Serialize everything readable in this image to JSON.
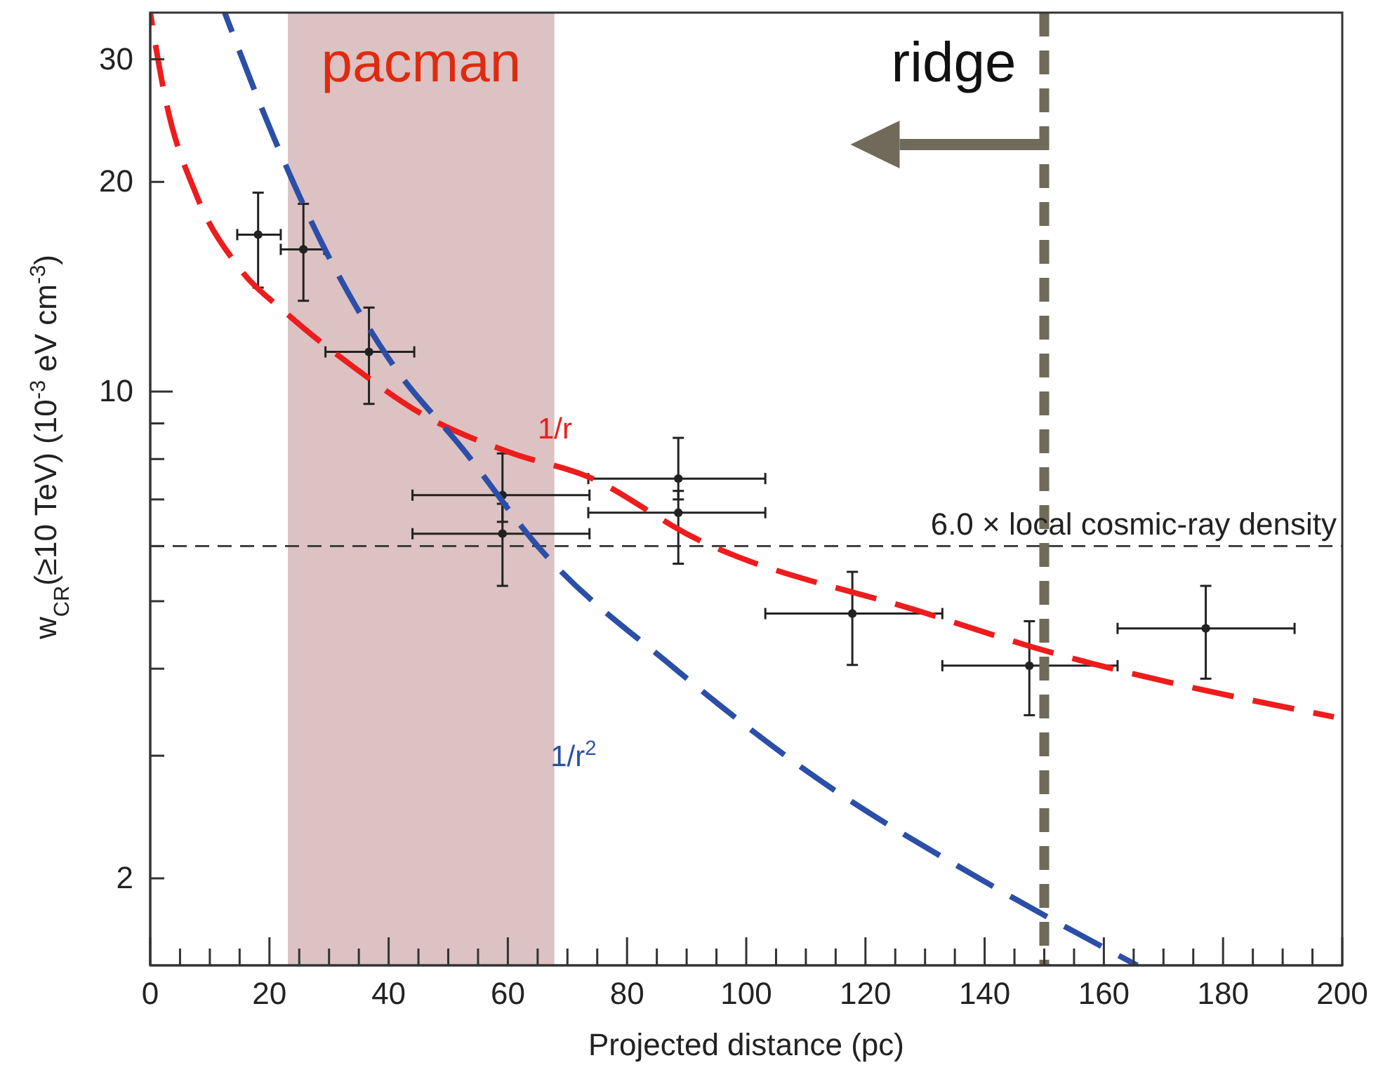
{
  "chart_data": {
    "type": "scatter",
    "xlabel": "Projected distance (pc)",
    "ylabel": "w$_{CR}$(≥10 TeV) (10$^{-3}$ eV cm$^{-3}$)",
    "log": true,
    "xlim": [
      0,
      200
    ],
    "ylim": [
      1.5,
      35
    ],
    "xticks": [
      0,
      {
        "value": 5,
        "label": null
      },
      {
        "value": 10,
        "label": null
      },
      {
        "value": 15,
        "label": null
      },
      20,
      {
        "value": 25,
        "label": null
      },
      {
        "value": 30,
        "label": null
      },
      {
        "value": 35,
        "label": null
      },
      40,
      {
        "value": 45,
        "label": null
      },
      {
        "value": 50,
        "label": null
      },
      {
        "value": 55,
        "label": null
      },
      60,
      {
        "value": 65,
        "label": null
      },
      {
        "value": 70,
        "label": null
      },
      {
        "value": 75,
        "label": null
      },
      80,
      {
        "value": 85,
        "label": null
      },
      {
        "value": 90,
        "label": null
      },
      {
        "value": 95,
        "label": null
      },
      100,
      {
        "value": 105,
        "label": null
      },
      {
        "value": 110,
        "label": null
      },
      {
        "value": 115,
        "label": null
      },
      120,
      {
        "value": 125,
        "label": null
      },
      {
        "value": 130,
        "label": null
      },
      {
        "value": 135,
        "label": null
      },
      140,
      {
        "value": 145,
        "label": null
      },
      {
        "value": 150,
        "label": null
      },
      {
        "value": 155,
        "label": null
      },
      160,
      {
        "value": 165,
        "label": null
      },
      {
        "value": 170,
        "label": null
      },
      {
        "value": 175,
        "label": null
      },
      180,
      {
        "value": 185,
        "label": null
      },
      {
        "value": 190,
        "label": null
      },
      {
        "value": 195,
        "label": null
      },
      200
    ],
    "yticks": [
      2,
      {
        "value": 3,
        "label": null
      },
      {
        "value": 4,
        "label": null
      },
      {
        "value": 5,
        "label": null
      },
      {
        "value": 6,
        "label": null
      },
      {
        "value": 7,
        "label": null
      },
      {
        "value": 8,
        "label": null
      },
      {
        "value": 9,
        "label": null
      },
      10,
      20,
      30
    ],
    "grid": false,
    "series": [
      {
        "color": "#222222",
        "marker": "circle",
        "x": [
          18.1,
          25.7,
          36.7,
          59.1,
          59.1,
          88.6,
          88.6,
          117.8,
          147.5,
          177.1
        ],
        "values": [
          16.8,
          16.0,
          11.4,
          7.1,
          6.25,
          7.5,
          6.7,
          4.8,
          4.04,
          4.57
        ],
        "errors": [
          [
            14.1,
            19.3
          ],
          [
            13.5,
            18.6
          ],
          [
            9.6,
            13.2
          ],
          [
            6.5,
            8.15
          ],
          [
            5.26,
            6.9
          ],
          [
            7.0,
            8.58
          ],
          [
            5.66,
            7.2
          ],
          [
            4.05,
            5.51
          ],
          [
            3.43,
            4.68
          ],
          [
            3.87,
            5.26
          ]
        ],
        "xerrors": [
          [
            14.6,
            21.9
          ],
          [
            21.9,
            29.2
          ],
          [
            29.4,
            44.3
          ],
          [
            44,
            73.7
          ],
          [
            44,
            73.7
          ],
          [
            73.5,
            103.2
          ],
          [
            73.5,
            103.2
          ],
          [
            103.2,
            132.9
          ],
          [
            132.9,
            162.3
          ],
          [
            162.3,
            192
          ]
        ]
      },
      {
        "type": "line",
        "name": "1/r",
        "color": "#ee1c1c",
        "line_style": "dashed",
        "x": [
          0,
          2.4,
          7.8,
          14.8,
          23.1,
          34.4,
          45.5,
          60.3,
          73.7,
          90.9,
          130.3,
          147.5,
          198.6
        ],
        "values": [
          35,
          26.7,
          19.1,
          15.1,
          12.9,
          10.8,
          9.29,
          8.18,
          7.53,
          6.19,
          4.8,
          4.31,
          3.41
        ]
      },
      {
        "type": "line",
        "name": "1/r$^{2}$",
        "color": "#2b4ea8",
        "line_style": "dashed",
        "x": [
          12.5,
          20.7,
          29,
          40.8,
          52.5,
          65,
          87.9,
          110.7,
          141.3,
          165.6
        ],
        "values": [
          35,
          23.2,
          16.2,
          10.9,
          8.26,
          6.0,
          4.01,
          2.83,
          1.95,
          1.5
        ]
      }
    ],
    "bands": [
      {
        "axis": "x",
        "from": 23.1,
        "to": 67.8,
        "label": "pacman",
        "color": "#dcc2c2"
      }
    ],
    "ref_lines": [
      {
        "axis": "y",
        "value": 6.0,
        "label": "6.0 × local cosmic-ray density",
        "color": "#333333",
        "line_style": "dashed"
      },
      {
        "axis": "x",
        "value": 150,
        "label": "ridge",
        "color": "#706a5a",
        "line_style": "dashed"
      }
    ]
  }
}
